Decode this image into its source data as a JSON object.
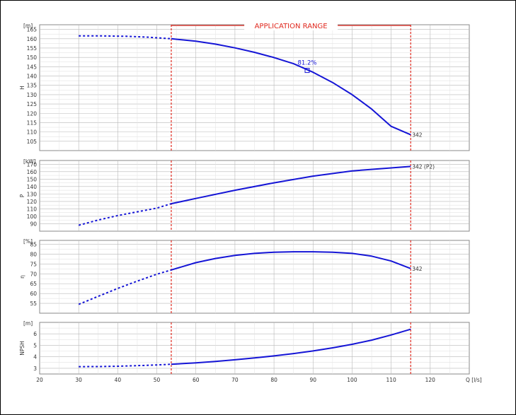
{
  "app_range_label": "APPLICATION RANGE",
  "x_axis": {
    "label": "Q [l/s]",
    "ticks": [
      20,
      30,
      40,
      50,
      60,
      70,
      80,
      90,
      100,
      110,
      120
    ],
    "xlim": [
      20,
      130
    ]
  },
  "chart_data": [
    {
      "type": "line",
      "id": "H",
      "ylabel": "H",
      "unit": "[m]",
      "ylim": [
        100,
        167.5
      ],
      "ticks": [
        105,
        110,
        115,
        120,
        125,
        130,
        135,
        140,
        145,
        150,
        155,
        160,
        165
      ],
      "grid": true,
      "application_range": [
        53.7,
        115
      ],
      "series": [
        {
          "x": [
            30,
            36,
            42,
            48,
            53.7
          ],
          "y": [
            161.5,
            161.5,
            161.3,
            160.8,
            160.0
          ],
          "style": "dashed"
        },
        {
          "x": [
            53.7,
            60,
            65,
            70,
            75,
            80,
            85,
            90,
            95,
            100,
            105,
            110,
            115
          ],
          "y": [
            160.0,
            158.7,
            157.1,
            155.1,
            152.7,
            149.9,
            146.6,
            142.0,
            136.5,
            130.0,
            122.3,
            113.0,
            108.5
          ],
          "style": "solid"
        }
      ],
      "annotations": [
        {
          "text": "81.2%",
          "x": 88.5,
          "y": 146.0
        },
        {
          "text": "342",
          "x": 115,
          "y": 108.5
        }
      ],
      "bep_marker": {
        "x": 88.5,
        "y": 143.0
      }
    },
    {
      "type": "line",
      "id": "P",
      "ylabel": "P",
      "unit": "[kW]",
      "ylim": [
        80,
        175
      ],
      "ticks": [
        90,
        100,
        110,
        120,
        130,
        140,
        150,
        160,
        170
      ],
      "grid": true,
      "application_range": [
        53.7,
        115
      ],
      "series": [
        {
          "x": [
            30,
            35,
            40,
            45,
            50,
            53.7
          ],
          "y": [
            88,
            95,
            101,
            106,
            111,
            117
          ],
          "style": "dashed"
        },
        {
          "x": [
            53.7,
            60,
            70,
            80,
            90,
            100,
            110,
            115
          ],
          "y": [
            117,
            124,
            135,
            145,
            154,
            161,
            165,
            167
          ],
          "style": "solid"
        }
      ],
      "annotations": [
        {
          "text": "342 (P2)",
          "x": 115,
          "y": 167
        }
      ]
    },
    {
      "type": "line",
      "id": "eta",
      "ylabel": "η",
      "unit": "[%]",
      "ylim": [
        50,
        87
      ],
      "ticks": [
        55,
        60,
        65,
        70,
        75,
        80,
        85
      ],
      "grid": true,
      "application_range": [
        53.7,
        115
      ],
      "series": [
        {
          "x": [
            30,
            35,
            40,
            45,
            50,
            53.7
          ],
          "y": [
            54.5,
            58.6,
            62.6,
            66.3,
            69.8,
            72.0
          ],
          "style": "dashed"
        },
        {
          "x": [
            53.7,
            60,
            65,
            70,
            75,
            80,
            85,
            90,
            95,
            100,
            105,
            110,
            115
          ],
          "y": [
            72.0,
            75.7,
            77.8,
            79.4,
            80.4,
            81.0,
            81.2,
            81.2,
            81.0,
            80.4,
            79.0,
            76.5,
            72.7
          ],
          "style": "solid"
        }
      ],
      "annotations": [
        {
          "text": "342",
          "x": 115,
          "y": 72.7
        }
      ]
    },
    {
      "type": "line",
      "id": "NPSH",
      "ylabel": "NPSH",
      "unit": "[m]",
      "ylim": [
        2.5,
        7
      ],
      "ticks": [
        3,
        4,
        5,
        6
      ],
      "grid": true,
      "application_range": [
        53.7,
        115
      ],
      "series": [
        {
          "x": [
            30,
            35,
            40,
            45,
            50,
            53.7
          ],
          "y": [
            3.14,
            3.15,
            3.18,
            3.23,
            3.29,
            3.35
          ],
          "style": "dashed"
        },
        {
          "x": [
            53.7,
            60,
            65,
            70,
            75,
            80,
            85,
            90,
            95,
            100,
            105,
            110,
            115
          ],
          "y": [
            3.35,
            3.47,
            3.6,
            3.74,
            3.9,
            4.08,
            4.28,
            4.51,
            4.78,
            5.09,
            5.45,
            5.9,
            6.4
          ],
          "style": "solid"
        }
      ]
    }
  ],
  "colors": {
    "curve": "#1515d6",
    "range": "#e0281e",
    "grid": "#b8b8b8",
    "panel_border": "#888888",
    "text": "#333333",
    "label_bg": "#ffffff"
  }
}
